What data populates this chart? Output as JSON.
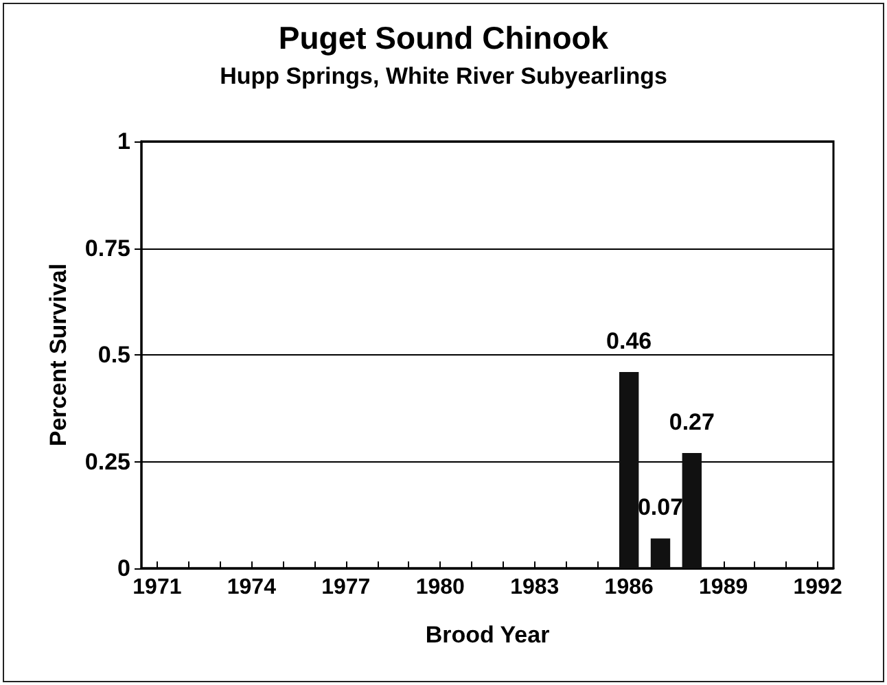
{
  "chart_data": {
    "type": "bar",
    "title": "Puget Sound Chinook",
    "subtitle": "Hupp Springs, White River Subyearlings",
    "xlabel": "Brood Year",
    "ylabel": "Percent Survival",
    "categories": [
      "1971",
      null,
      null,
      "1974",
      null,
      null,
      "1977",
      null,
      null,
      "1980",
      null,
      null,
      "1983",
      null,
      null,
      "1986",
      null,
      null,
      "1989",
      null,
      null,
      "1992"
    ],
    "values": [
      null,
      null,
      null,
      null,
      null,
      null,
      null,
      null,
      null,
      null,
      null,
      null,
      null,
      null,
      null,
      0.46,
      0.07,
      0.27,
      null,
      null,
      null,
      null
    ],
    "color": "#111111",
    "data_labels": true,
    "ylim": [
      0,
      1
    ],
    "yticks": [
      0,
      0.25,
      0.5,
      0.75,
      1
    ],
    "grid": "y"
  }
}
